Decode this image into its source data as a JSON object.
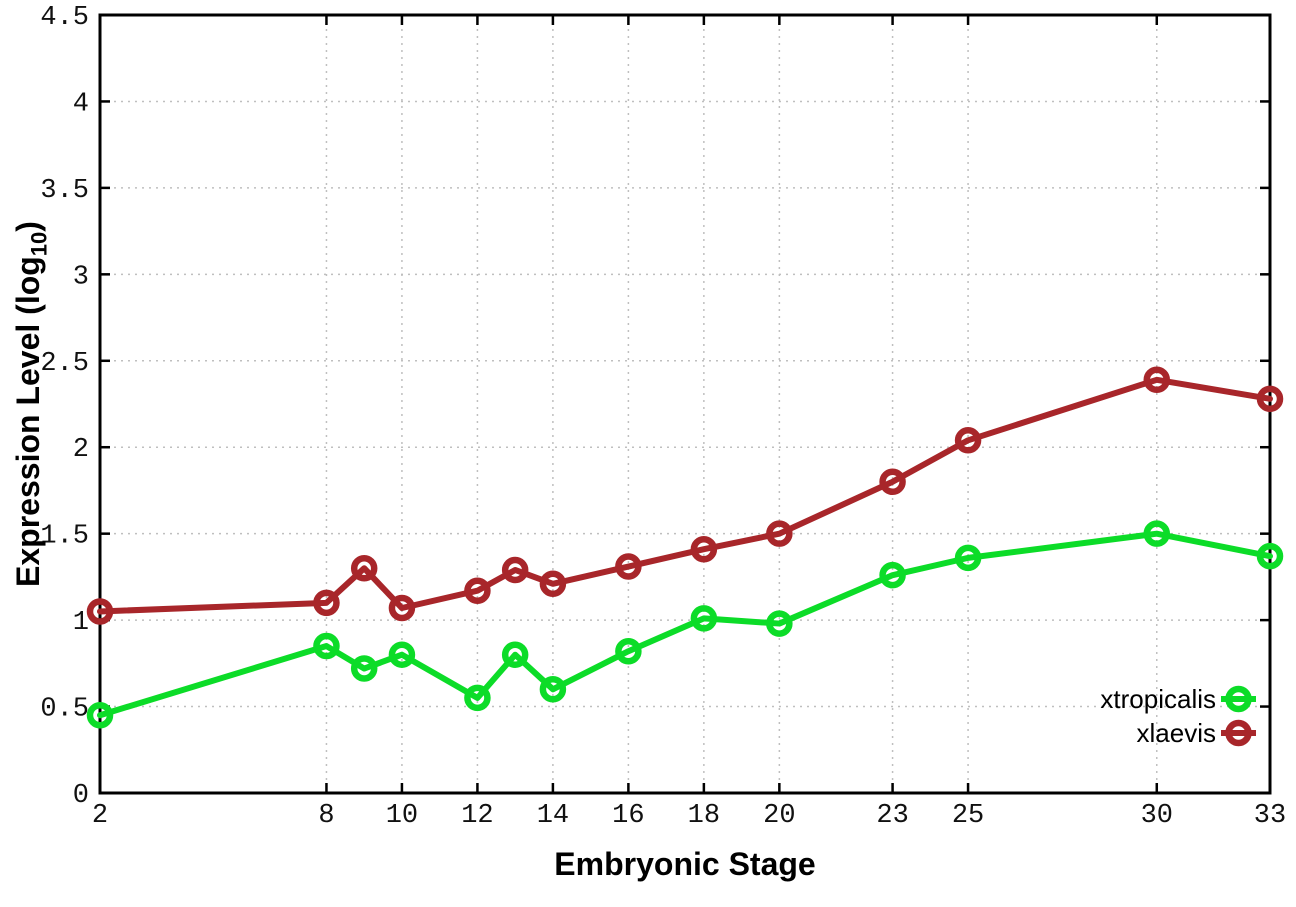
{
  "chart_data": {
    "type": "line",
    "title": "",
    "xlabel": "Embryonic Stage",
    "ylabel": "Expression Level (log10)",
    "ylabel_parts": {
      "pre": "Expression Level (log",
      "sub": "10",
      "post": ")"
    },
    "x": [
      2,
      8,
      9,
      10,
      12,
      13,
      14,
      16,
      18,
      20,
      23,
      25,
      30,
      33
    ],
    "series": [
      {
        "name": "xtropicalis",
        "color": "#0cdc28",
        "values": [
          0.45,
          0.85,
          0.72,
          0.8,
          0.55,
          0.8,
          0.6,
          0.82,
          1.01,
          0.98,
          1.26,
          1.36,
          1.5,
          1.37
        ]
      },
      {
        "name": "xlaevis",
        "color": "#a8262a",
        "values": [
          1.05,
          1.1,
          1.3,
          1.07,
          1.17,
          1.29,
          1.21,
          1.31,
          1.41,
          1.5,
          1.8,
          2.04,
          2.39,
          2.28
        ]
      }
    ],
    "xlim": [
      2,
      33
    ],
    "ylim": [
      0,
      4.5
    ],
    "x_ticks": [
      2,
      8,
      10,
      12,
      14,
      16,
      18,
      20,
      23,
      25,
      30,
      33
    ],
    "y_ticks": [
      0,
      0.5,
      1,
      1.5,
      2,
      2.5,
      3,
      3.5,
      4,
      4.5
    ],
    "grid": true,
    "legend_position": "inside-bottom-right",
    "marker": "open-circle",
    "colors": {
      "background": "#ffffff",
      "border": "#000000",
      "grid": "#bfbfbf",
      "tick_text": "#111111"
    }
  }
}
